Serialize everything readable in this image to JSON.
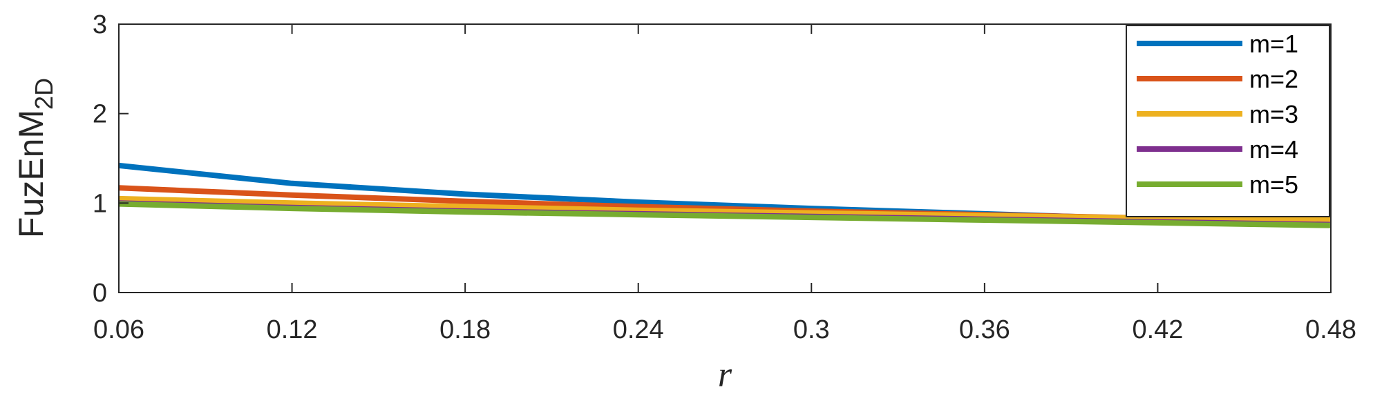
{
  "chart_data": {
    "type": "line",
    "xlabel": "r",
    "ylabel": "FuzEnM",
    "ylabel_sub": "2D",
    "xlim": [
      0.06,
      0.48
    ],
    "ylim": [
      0,
      3
    ],
    "x_ticks": [
      0.06,
      0.12,
      0.18,
      0.24,
      0.3,
      0.36,
      0.42,
      0.48
    ],
    "x_tick_labels": [
      "0.06",
      "0.12",
      "0.18",
      "0.24",
      "0.3",
      "0.36",
      "0.42",
      "0.48"
    ],
    "y_ticks": [
      0,
      1,
      2,
      3
    ],
    "y_tick_labels": [
      "0",
      "1",
      "2",
      "3"
    ],
    "grid": false,
    "legend_position": "top-right",
    "x": [
      0.06,
      0.12,
      0.18,
      0.24,
      0.3,
      0.36,
      0.42,
      0.48
    ],
    "series": [
      {
        "name": "m=1",
        "color": "#0072BD",
        "values": [
          1.42,
          1.22,
          1.1,
          1.01,
          0.94,
          0.88,
          0.82,
          0.78
        ]
      },
      {
        "name": "m=2",
        "color": "#D95319",
        "values": [
          1.17,
          1.09,
          1.02,
          0.96,
          0.91,
          0.87,
          0.83,
          0.8
        ]
      },
      {
        "name": "m=3",
        "color": "#EDB120",
        "values": [
          1.05,
          1.0,
          0.96,
          0.92,
          0.89,
          0.86,
          0.83,
          0.81
        ]
      },
      {
        "name": "m=4",
        "color": "#7E2F8E",
        "values": [
          1.0,
          0.95,
          0.91,
          0.88,
          0.85,
          0.82,
          0.79,
          0.76
        ]
      },
      {
        "name": "m=5",
        "color": "#77AC30",
        "values": [
          0.99,
          0.94,
          0.9,
          0.87,
          0.84,
          0.81,
          0.78,
          0.75
        ]
      }
    ]
  }
}
